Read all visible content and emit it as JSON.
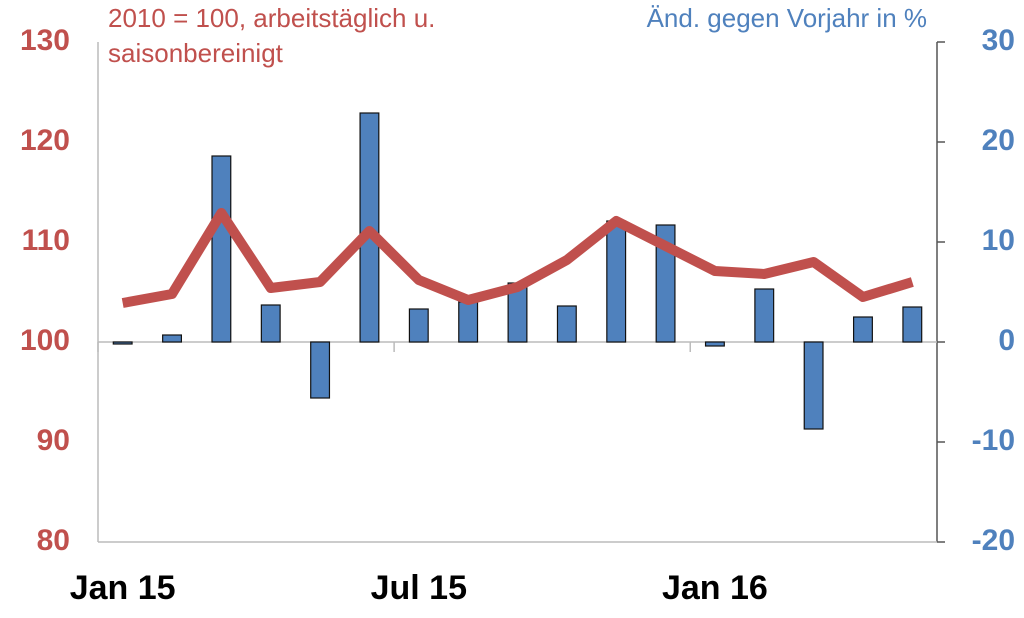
{
  "chart_data": {
    "type": "bar_line",
    "y_title": [
      "2010 = 100, arbeitstäglich u.",
      "saisonbereinigt"
    ],
    "y2_title": "Änd. gegen Vorjahr in %",
    "categories": [
      "Jan 15",
      null,
      null,
      null,
      null,
      null,
      "Jul 15",
      null,
      null,
      null,
      null,
      null,
      "Jan 16",
      null,
      null,
      null,
      null
    ],
    "series": [
      {
        "name": "Änd. gegen Vorjahr in %",
        "type": "bar",
        "axis": "y2",
        "color": "#4f81bd",
        "values": [
          -0.2,
          0.7,
          18.6,
          3.7,
          -5.6,
          22.9,
          3.3,
          4.0,
          5.9,
          3.6,
          12.1,
          11.7,
          -0.4,
          5.3,
          -8.7,
          2.5,
          3.5
        ]
      },
      {
        "name": "2010 = 100, arbeitstäglich u. saisonbereinigt",
        "type": "line",
        "axis": "y",
        "color": "#c0504d",
        "values": [
          103.9,
          104.8,
          112.9,
          105.4,
          106.0,
          111.1,
          106.2,
          104.2,
          105.5,
          108.2,
          112.1,
          109.6,
          107.1,
          106.8,
          108.0,
          104.5,
          106.0
        ]
      }
    ],
    "ylim": [
      80,
      130
    ],
    "yticks": [
      80,
      90,
      100,
      110,
      120,
      130
    ],
    "y_color": "#c0504d",
    "y2lim": [
      -20,
      30
    ],
    "y2ticks": [
      -20,
      -10,
      0,
      10,
      20,
      30
    ],
    "y2_color": "#4f81bd",
    "grid": false
  }
}
